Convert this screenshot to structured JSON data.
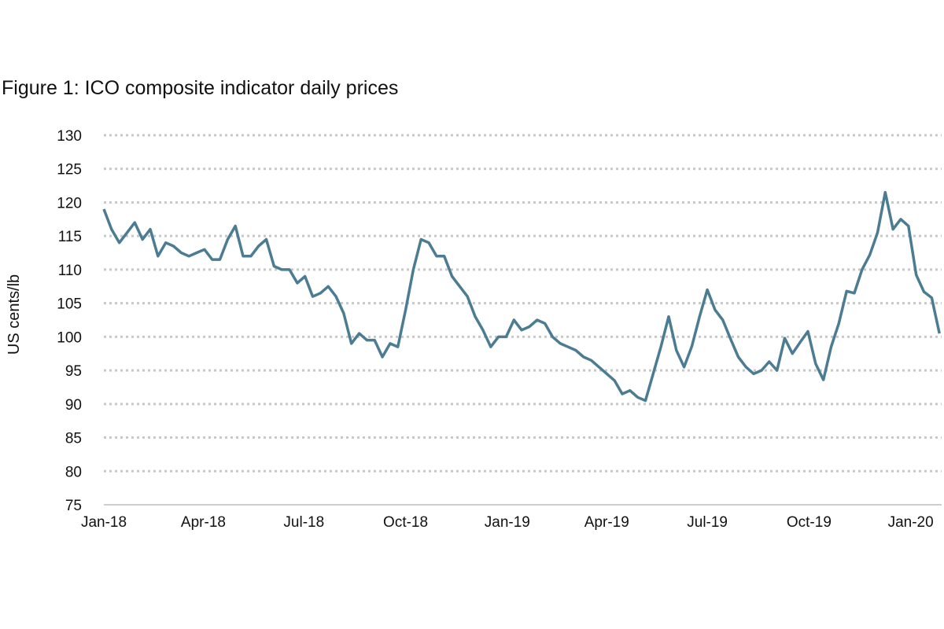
{
  "chart_data": {
    "type": "line",
    "title": "Figure 1: ICO composite indicator daily prices",
    "xlabel": "",
    "ylabel": "US cents/lb",
    "ylim": [
      75,
      130
    ],
    "xlim": [
      "2018-01-01",
      "2020-01-29"
    ],
    "yticks": [
      "75",
      "80",
      "85",
      "90",
      "95",
      "100",
      "105",
      "110",
      "115",
      "120",
      "125",
      "130"
    ],
    "xticks": [
      {
        "label": "Jan-18",
        "date": "2018-01-01"
      },
      {
        "label": "Apr-18",
        "date": "2018-04-01"
      },
      {
        "label": "Jul-18",
        "date": "2018-07-01"
      },
      {
        "label": "Oct-18",
        "date": "2018-10-01"
      },
      {
        "label": "Jan-19",
        "date": "2019-01-01"
      },
      {
        "label": "Apr-19",
        "date": "2019-04-01"
      },
      {
        "label": "Jul-19",
        "date": "2019-07-01"
      },
      {
        "label": "Oct-19",
        "date": "2019-10-01"
      },
      {
        "label": "Jan-20",
        "date": "2020-01-01"
      }
    ],
    "grid": "horizontal-dotted",
    "legend": "none",
    "line_color": "#4b7c91",
    "grid_color": "#c8c8c8",
    "series": [
      {
        "x": [
          "2018-01-01",
          "2018-01-08",
          "2018-01-15",
          "2018-01-22",
          "2018-01-29",
          "2018-02-05",
          "2018-02-12",
          "2018-02-19",
          "2018-02-26",
          "2018-03-05",
          "2018-03-12",
          "2018-03-19",
          "2018-03-26",
          "2018-04-02",
          "2018-04-09",
          "2018-04-16",
          "2018-04-23",
          "2018-04-30",
          "2018-05-07",
          "2018-05-14",
          "2018-05-21",
          "2018-05-28",
          "2018-06-04",
          "2018-06-11",
          "2018-06-18",
          "2018-06-25",
          "2018-07-02",
          "2018-07-09",
          "2018-07-16",
          "2018-07-23",
          "2018-07-30",
          "2018-08-06",
          "2018-08-13",
          "2018-08-20",
          "2018-08-27",
          "2018-09-03",
          "2018-09-10",
          "2018-09-17",
          "2018-09-24",
          "2018-10-01",
          "2018-10-08",
          "2018-10-15",
          "2018-10-22",
          "2018-10-29",
          "2018-11-05",
          "2018-11-12",
          "2018-11-19",
          "2018-11-26",
          "2018-12-03",
          "2018-12-10",
          "2018-12-17",
          "2018-12-24",
          "2018-12-31",
          "2019-01-07",
          "2019-01-14",
          "2019-01-21",
          "2019-01-28",
          "2019-02-04",
          "2019-02-11",
          "2019-02-18",
          "2019-02-25",
          "2019-03-04",
          "2019-03-11",
          "2019-03-18",
          "2019-03-25",
          "2019-04-01",
          "2019-04-08",
          "2019-04-15",
          "2019-04-22",
          "2019-04-29",
          "2019-05-06",
          "2019-05-13",
          "2019-05-20",
          "2019-05-27",
          "2019-06-03",
          "2019-06-10",
          "2019-06-17",
          "2019-06-24",
          "2019-07-01",
          "2019-07-08",
          "2019-07-15",
          "2019-07-22",
          "2019-07-29",
          "2019-08-05",
          "2019-08-12",
          "2019-08-19",
          "2019-08-26",
          "2019-09-02",
          "2019-09-09",
          "2019-09-16",
          "2019-09-23",
          "2019-09-30",
          "2019-10-07",
          "2019-10-14",
          "2019-10-21",
          "2019-10-28",
          "2019-11-04",
          "2019-11-11",
          "2019-11-18",
          "2019-11-25",
          "2019-12-02",
          "2019-12-09",
          "2019-12-16",
          "2019-12-23",
          "2019-12-30",
          "2020-01-06",
          "2020-01-13",
          "2020-01-20",
          "2020-01-27"
        ],
        "values": [
          119,
          116,
          114,
          115.5,
          117,
          114.5,
          116,
          112,
          114,
          113.5,
          112.5,
          112,
          112.5,
          113,
          111.5,
          111.5,
          114.5,
          116.5,
          112,
          112,
          113.5,
          114.5,
          110.5,
          110,
          110,
          108,
          109,
          106,
          106.5,
          107.5,
          106,
          103.5,
          99,
          100.5,
          99.5,
          99.5,
          97,
          99,
          98.5,
          104,
          110,
          114.5,
          114,
          112,
          112,
          109,
          107.5,
          106,
          103,
          101,
          98.5,
          100,
          100,
          102.5,
          101,
          101.5,
          102.5,
          102,
          100,
          99,
          98.5,
          98,
          97,
          96.5,
          95.5,
          94.5,
          93.5,
          91.5,
          92,
          91,
          90.5,
          94.5,
          98.5,
          103,
          98,
          95.5,
          98.6,
          103,
          107,
          104,
          102.5,
          99.7,
          97,
          95.5,
          94.5,
          95,
          96.3,
          95,
          99.8,
          97.5,
          99.2,
          100.8,
          96,
          93.6,
          98.5,
          102,
          106.8,
          106.5,
          110,
          112.2,
          115.5,
          121.5,
          116,
          117.5,
          116.5,
          109.2,
          106.7,
          105.8,
          100.5
        ]
      }
    ]
  }
}
